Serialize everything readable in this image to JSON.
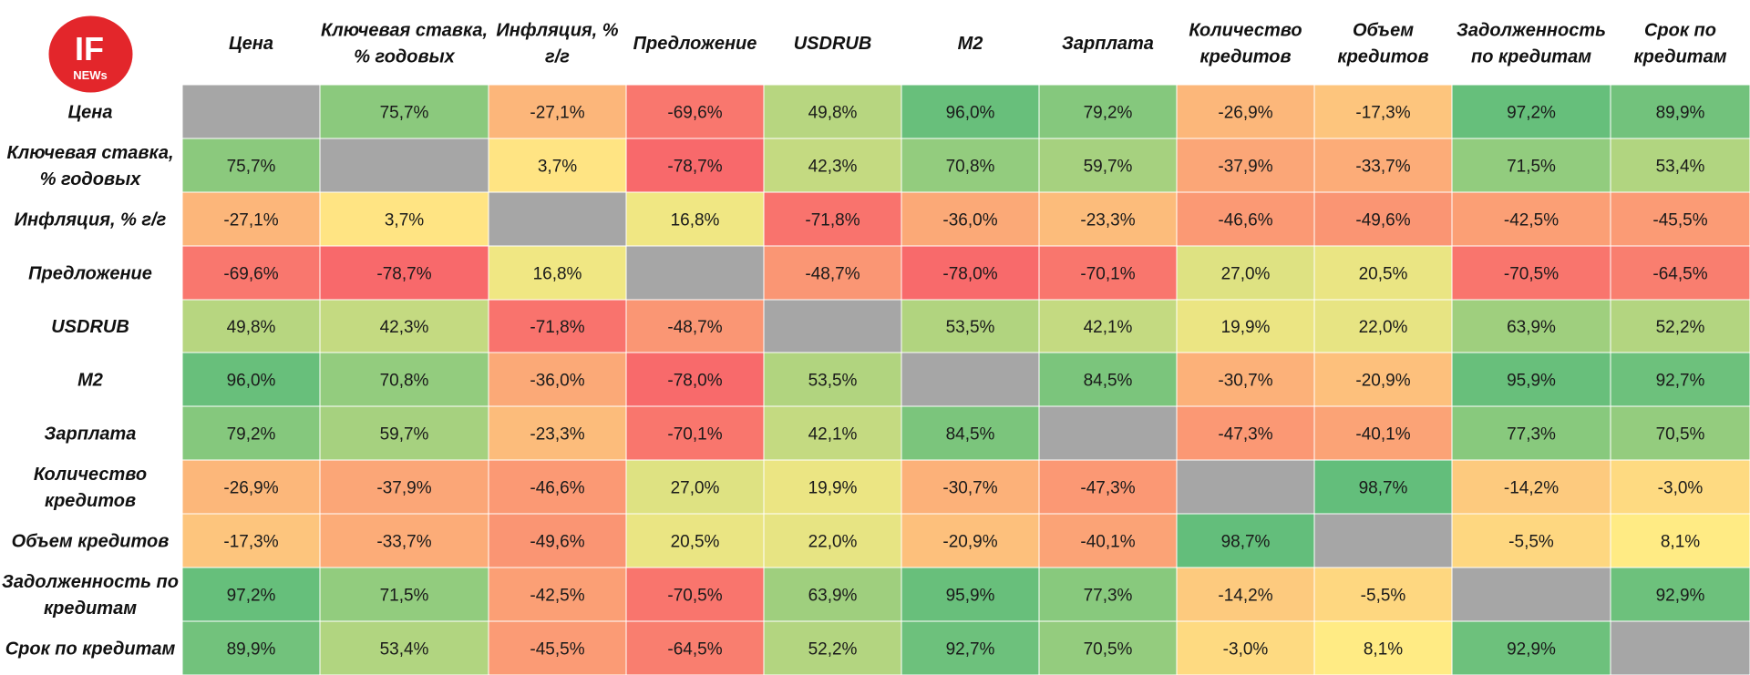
{
  "logo": {
    "top_text": "IF",
    "bottom_text": "NEWs",
    "color": "#e3262b"
  },
  "chart_data": {
    "type": "heatmap",
    "title": "",
    "variables": [
      "Цена",
      "Ключевая ставка, % годовых",
      "Инфляция, % г/г",
      "Предложение",
      "USDRUB",
      "M2",
      "Зарплата",
      "Количество кредитов",
      "Объем кредитов",
      "Задолженность по кредитам",
      "Срок по кредитам"
    ],
    "column_labels": [
      [
        "Цена"
      ],
      [
        "Ключевая ставка,",
        "% годовых"
      ],
      [
        "Инфляция, %",
        "г/г"
      ],
      [
        "Предложение"
      ],
      [
        "USDRUB"
      ],
      [
        "M2"
      ],
      [
        "Зарплата"
      ],
      [
        "Количество",
        "кредитов"
      ],
      [
        "Объем",
        "кредитов"
      ],
      [
        "Задолженность",
        "по кредитам"
      ],
      [
        "Срок по",
        "кредитам"
      ]
    ],
    "row_labels": [
      [
        "Цена"
      ],
      [
        "Ключевая ставка,",
        "% годовых"
      ],
      [
        "Инфляция, % г/г"
      ],
      [
        "Предложение"
      ],
      [
        "USDRUB"
      ],
      [
        "M2"
      ],
      [
        "Зарплата"
      ],
      [
        "Количество",
        "кредитов"
      ],
      [
        "Объем кредитов"
      ],
      [
        "Задолженность по",
        "кредитам"
      ],
      [
        "Срок по кредитам"
      ]
    ],
    "values": [
      [
        null,
        75.7,
        -27.1,
        -69.6,
        49.8,
        96.0,
        79.2,
        -26.9,
        -17.3,
        97.2,
        89.9
      ],
      [
        75.7,
        null,
        3.7,
        -78.7,
        42.3,
        70.8,
        59.7,
        -37.9,
        -33.7,
        71.5,
        53.4
      ],
      [
        -27.1,
        3.7,
        null,
        16.8,
        -71.8,
        -36.0,
        -23.3,
        -46.6,
        -49.6,
        -42.5,
        -45.5
      ],
      [
        -69.6,
        -78.7,
        16.8,
        null,
        -48.7,
        -78.0,
        -70.1,
        27.0,
        20.5,
        -70.5,
        -64.5
      ],
      [
        49.8,
        42.3,
        -71.8,
        -48.7,
        null,
        53.5,
        42.1,
        19.9,
        22.0,
        63.9,
        52.2
      ],
      [
        96.0,
        70.8,
        -36.0,
        -78.0,
        53.5,
        null,
        84.5,
        -30.7,
        -20.9,
        95.9,
        92.7
      ],
      [
        79.2,
        59.7,
        -23.3,
        -70.1,
        42.1,
        84.5,
        null,
        -47.3,
        -40.1,
        77.3,
        70.5
      ],
      [
        -26.9,
        -37.9,
        -46.6,
        27.0,
        19.9,
        -30.7,
        -47.3,
        null,
        98.7,
        -14.2,
        -3.0
      ],
      [
        -17.3,
        -33.7,
        -49.6,
        20.5,
        22.0,
        -20.9,
        -40.1,
        98.7,
        null,
        -5.5,
        8.1
      ],
      [
        97.2,
        71.5,
        -42.5,
        -70.5,
        63.9,
        95.9,
        77.3,
        -14.2,
        -5.5,
        null,
        92.9
      ],
      [
        89.9,
        53.4,
        -45.5,
        -64.5,
        52.2,
        92.7,
        70.5,
        -3.0,
        8.1,
        92.9,
        null
      ]
    ],
    "unit": "%",
    "decimal_separator": ",",
    "color_scale": {
      "min_value": -78.7,
      "mid_value": 8.1,
      "max_value": 98.7,
      "min_color": "#f8696b",
      "mid_color": "#ffeb84",
      "max_color": "#63be7b"
    },
    "diagonal_color": "#a6a6a6"
  }
}
